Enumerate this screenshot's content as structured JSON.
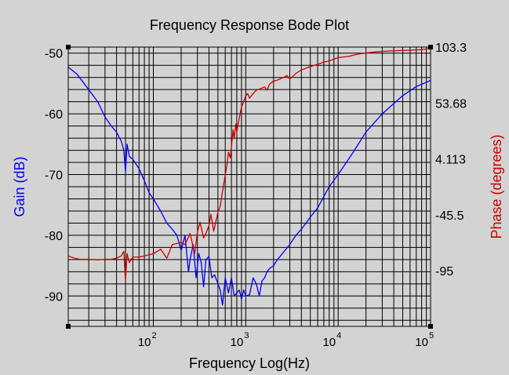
{
  "chart_data": {
    "type": "line",
    "title": "Frequency Response Bode Plot",
    "xlabel": "Frequency Log(Hz)",
    "ylabel_left": "Gain (dB)",
    "ylabel_right": "Phase (degrees)",
    "x_scale": "log",
    "xlim": [
      12,
      100000
    ],
    "ylim_left": [
      -95,
      -49
    ],
    "ylim_right": [
      -144.5,
      103.3
    ],
    "grid": true,
    "x_ticks": [
      {
        "base": "10",
        "exp": "2",
        "value": 100
      },
      {
        "base": "10",
        "exp": "3",
        "value": 1000
      },
      {
        "base": "10",
        "exp": "4",
        "value": 10000
      },
      {
        "base": "10",
        "exp": "5",
        "value": 100000
      }
    ],
    "y_ticks_left": [
      {
        "label": "-50",
        "value": -50
      },
      {
        "label": "-60",
        "value": -60
      },
      {
        "label": "-70",
        "value": -70
      },
      {
        "label": "-80",
        "value": -80
      },
      {
        "label": "-90",
        "value": -90
      }
    ],
    "y_ticks_right": [
      {
        "label": "103.3",
        "value": 103.3
      },
      {
        "label": "53.68",
        "value": 53.68
      },
      {
        "label": "4.113",
        "value": 4.113
      },
      {
        "label": "-45.5",
        "value": -45.5
      },
      {
        "label": "-95",
        "value": -95
      }
    ],
    "colors": {
      "background": "#d3d3d3",
      "gain": "#0000ff",
      "phase": "#cc0000",
      "grid": "#000000",
      "gain_label": "#0000ff",
      "phase_label": "#cc0000"
    },
    "series": [
      {
        "axis": "left",
        "color": "#0000ff",
        "x": [
          12,
          15,
          20,
          25,
          30,
          35,
          40,
          45,
          48,
          50,
          52,
          55,
          60,
          70,
          80,
          90,
          100,
          120,
          140,
          160,
          180,
          200,
          220,
          230,
          240,
          250,
          270,
          290,
          310,
          330,
          350,
          370,
          400,
          430,
          460,
          500,
          530,
          560,
          600,
          650,
          700,
          750,
          800,
          850,
          900,
          950,
          1000,
          1100,
          1200,
          1300,
          1400,
          1500,
          1600,
          1700,
          1800,
          2000,
          2200,
          2500,
          3000,
          3500,
          4000,
          5000,
          6000,
          8000,
          10000,
          15000,
          20000,
          30000,
          50000,
          70000,
          100000
        ],
        "values": [
          -52.3,
          -53.5,
          -56,
          -58,
          -60.5,
          -62,
          -63,
          -64.5,
          -66,
          -69.5,
          -65,
          -67,
          -67.5,
          -69,
          -71,
          -73,
          -74,
          -76,
          -78,
          -79,
          -80,
          -82.5,
          -80,
          -83,
          -86,
          -84,
          -81.5,
          -87,
          -83,
          -84.5,
          -88.5,
          -84,
          -83.5,
          -87,
          -86.5,
          -88,
          -89,
          -91.5,
          -87,
          -89.5,
          -87,
          -90,
          -89.5,
          -89,
          -90.5,
          -89,
          -90,
          -89.8,
          -87,
          -88,
          -90,
          -87.5,
          -87,
          -86,
          -85.5,
          -85,
          -84,
          -83,
          -81.5,
          -80,
          -79,
          -77,
          -75.5,
          -72,
          -70,
          -66,
          -63,
          -60,
          -57,
          -55.5,
          -54.5
        ]
      },
      {
        "axis": "right",
        "color": "#cc0000",
        "x": [
          12,
          14,
          16,
          20,
          25,
          30,
          35,
          40,
          45,
          48,
          50,
          52,
          55,
          60,
          70,
          80,
          90,
          100,
          110,
          120,
          140,
          160,
          180,
          200,
          220,
          250,
          280,
          300,
          320,
          350,
          380,
          400,
          420,
          450,
          480,
          500,
          530,
          560,
          600,
          630,
          650,
          680,
          700,
          730,
          750,
          780,
          800,
          850,
          900,
          950,
          1000,
          1050,
          1100,
          1200,
          1300,
          1400,
          1500,
          1600,
          1700,
          1800,
          1900,
          2000,
          2200,
          2500,
          2800,
          3000,
          3300,
          3500,
          4000,
          5000,
          6000,
          7000,
          8000,
          10000,
          13000,
          16000,
          20000,
          25000,
          30000,
          40000,
          60000,
          80000,
          100000
        ],
        "values": [
          -82,
          -84,
          -85,
          -85,
          -85.5,
          -85,
          -85,
          -84,
          -82,
          -78,
          -104,
          -80,
          -88,
          -83,
          -83,
          -82,
          -81,
          -80,
          -78,
          -76,
          -84,
          -72,
          -71,
          -70,
          -72,
          -62,
          -80,
          -61,
          -52,
          -66,
          -60,
          -55,
          -45,
          -60,
          -50,
          -43,
          -38,
          -25,
          -10,
          0,
          10,
          5,
          15,
          30,
          22,
          35,
          28,
          40,
          50,
          55,
          60,
          62,
          58,
          62,
          65,
          66,
          67,
          68,
          65,
          70,
          72,
          73,
          74,
          76,
          78,
          75,
          78,
          80,
          83,
          86,
          88,
          90,
          91,
          94,
          95,
          97,
          98,
          99,
          99.5,
          100,
          100.5,
          101,
          102
        ]
      }
    ]
  }
}
